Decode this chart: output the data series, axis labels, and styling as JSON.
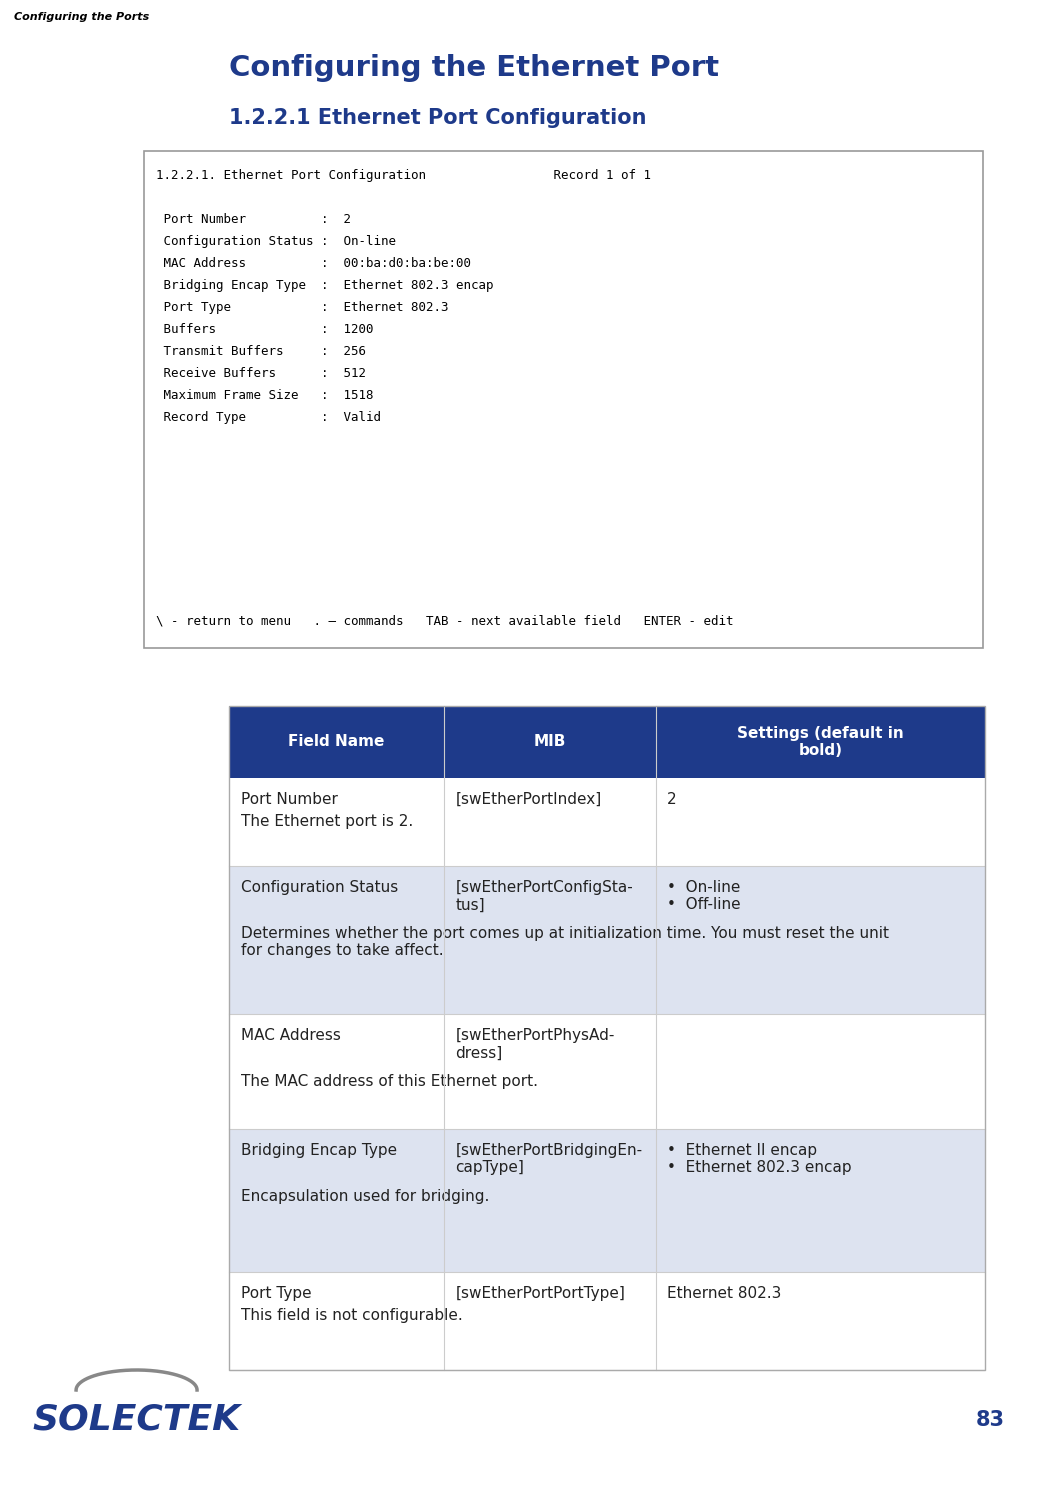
{
  "page_header": "Configuring the Ports",
  "main_title": "Configuring the Ethernet Port",
  "section_title": "1.2.2.1 Ethernet Port Configuration",
  "terminal_lines": [
    "1.2.2.1. Ethernet Port Configuration                 Record 1 of 1",
    "",
    " Port Number          :  2",
    " Configuration Status :  On-line",
    " MAC Address          :  00:ba:d0:ba:be:00",
    " Bridging Encap Type  :  Ethernet 802.3 encap",
    " Port Type            :  Ethernet 802.3",
    " Buffers              :  1200",
    " Transmit Buffers     :  256",
    " Receive Buffers      :  512",
    " Maximum Frame Size   :  1518",
    " Record Type          :  Valid"
  ],
  "terminal_footer": "\\ - return to menu   . – commands   TAB - next available field   ENTER - edit",
  "table_header": [
    "Field Name",
    "MIB",
    "Settings (default in\nbold)"
  ],
  "table_header_bg": "#1e3a8a",
  "table_header_fg": "#ffffff",
  "table_alt_bg": "#dde3f0",
  "table_white_bg": "#ffffff",
  "table_rows": [
    {
      "field": "Port Number",
      "mib": "[swEtherPortIndex]",
      "settings": "2",
      "description": "The Ethernet port is 2.",
      "bg": "white"
    },
    {
      "field": "Configuration Status",
      "mib": "[swEtherPortConfigSta-\ntus]",
      "settings": "•  On-line\n•  Off-line",
      "description": "Determines whether the port comes up at initialization time. You must reset the unit\nfor changes to take affect.",
      "bg": "alt"
    },
    {
      "field": "MAC Address",
      "mib": "[swEtherPortPhysAd-\ndress]",
      "settings": "",
      "description": "The MAC address of this Ethernet port.",
      "bg": "white"
    },
    {
      "field": "Bridging Encap Type",
      "mib": "[swEtherPortBridgingEn-\ncapType]",
      "settings": "•  Ethernet II encap\n•  Ethernet 802.3 encap",
      "description": "Encapsulation used for bridging.",
      "bg": "alt"
    },
    {
      "field": "Port Type",
      "mib": "[swEtherPortPortType]",
      "settings": "Ethernet 802.3",
      "description": "This field is not configurable.",
      "bg": "white"
    }
  ],
  "logo_text": "SOLECTEK",
  "page_number": "83",
  "bg_color": "#ffffff",
  "terminal_bg": "#ffffff",
  "terminal_border": "#999999",
  "title_color": "#1e3a8a",
  "text_color": "#222222"
}
